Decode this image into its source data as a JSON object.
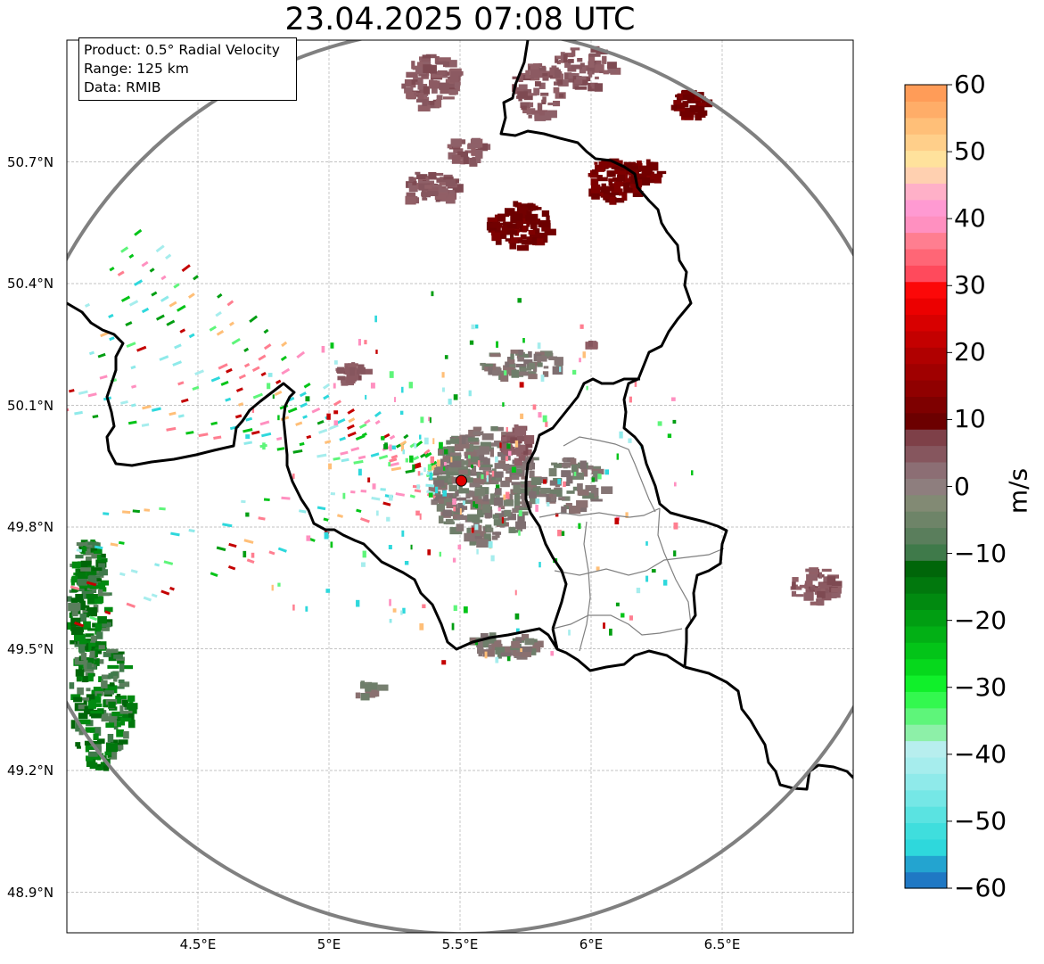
{
  "title": "23.04.2025 07:08 UTC",
  "info": {
    "product": "Product: 0.5° Radial Velocity",
    "range": "Range: 125 km",
    "data": "Data: RMIB"
  },
  "map": {
    "lon_range": [
      4.0,
      7.0
    ],
    "lat_range": [
      48.8,
      51.0
    ],
    "lat_ticks": [
      {
        "value": 50.7,
        "label": "50.7°N"
      },
      {
        "value": 50.4,
        "label": "50.4°N"
      },
      {
        "value": 50.1,
        "label": "50.1°N"
      },
      {
        "value": 49.8,
        "label": "49.8°N"
      },
      {
        "value": 49.5,
        "label": "49.5°N"
      },
      {
        "value": 49.2,
        "label": "49.2°N"
      },
      {
        "value": 48.9,
        "label": "48.9°N"
      }
    ],
    "lon_ticks": [
      {
        "value": 4.5,
        "label": "4.5°E"
      },
      {
        "value": 5.0,
        "label": "5°E"
      },
      {
        "value": 5.5,
        "label": "5.5°E"
      },
      {
        "value": 6.0,
        "label": "6°E"
      },
      {
        "value": 6.5,
        "label": "6.5°E"
      }
    ],
    "radar_site": {
      "lon": 5.505,
      "lat": 49.914
    },
    "range_km": 125,
    "colors": {
      "border": "#000000",
      "province": "#808080",
      "range_ring": "#808080",
      "site": "#e00000",
      "grid": "#b0b0b0"
    }
  },
  "colorbar": {
    "label": "m/s",
    "min": -60,
    "max": 60,
    "ticks": [
      {
        "value": 60,
        "label": "60"
      },
      {
        "value": 50,
        "label": "50"
      },
      {
        "value": 40,
        "label": "40"
      },
      {
        "value": 30,
        "label": "30"
      },
      {
        "value": 20,
        "label": "20"
      },
      {
        "value": 10,
        "label": "10"
      },
      {
        "value": 0,
        "label": "0"
      },
      {
        "value": -10,
        "label": "−10"
      },
      {
        "value": -20,
        "label": "−20"
      },
      {
        "value": -30,
        "label": "−30"
      },
      {
        "value": -40,
        "label": "−40"
      },
      {
        "value": -50,
        "label": "−50"
      },
      {
        "value": -60,
        "label": "−60"
      }
    ],
    "colors_bottom_to_top": [
      "#1f78c4",
      "#23a4d0",
      "#2ed8dc",
      "#3fdedd",
      "#5ae3e1",
      "#75e7e6",
      "#8feaea",
      "#a6eded",
      "#b7eeee",
      "#8df0a8",
      "#5ef57a",
      "#33f84f",
      "#10f02a",
      "#06d81c",
      "#03c418",
      "#02b015",
      "#019e12",
      "#018a10",
      "#01780d",
      "#006609",
      "#3f7a4a",
      "#5a7e5c",
      "#6e8468",
      "#828a74",
      "#8e7e7e",
      "#8c6e74",
      "#86565e",
      "#7e4048",
      "#6c0000",
      "#7e0000",
      "#900000",
      "#a00000",
      "#b00000",
      "#c40000",
      "#d80000",
      "#ec0000",
      "#fc0808",
      "#ff4a5c",
      "#ff6676",
      "#ff7e90",
      "#ff90c0",
      "#ff9ad2",
      "#ffb0c8",
      "#ffd0b0",
      "#ffe29c",
      "#ffcf8a",
      "#ffbf78",
      "#ffad68",
      "#ff9c58"
    ]
  }
}
